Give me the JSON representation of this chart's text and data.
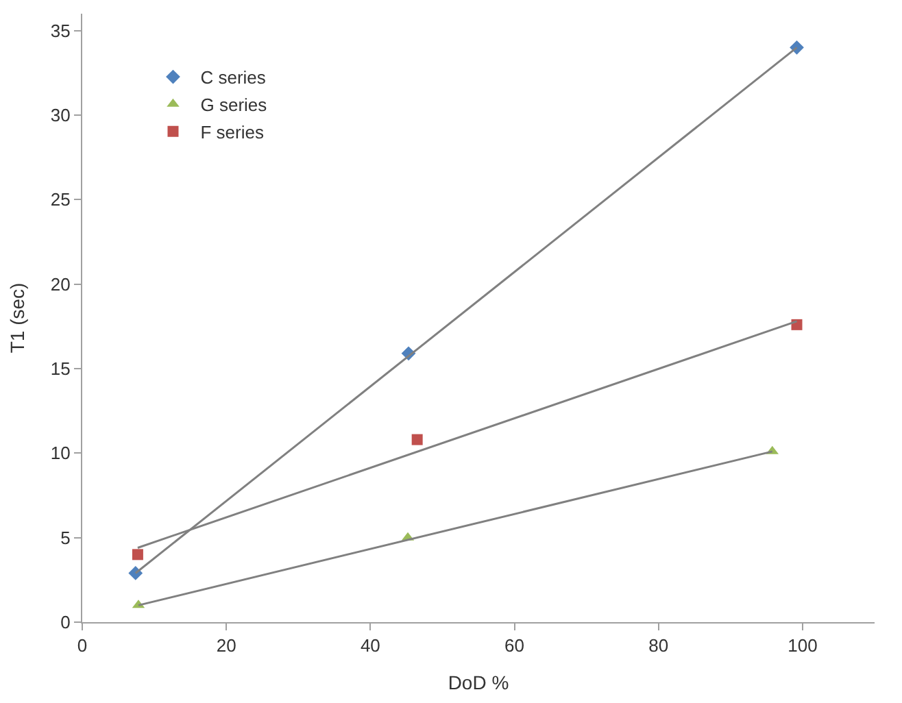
{
  "chart_data": {
    "type": "scatter",
    "xlabel": "DoD %",
    "ylabel": "T1 (sec)",
    "xlim": [
      0,
      110
    ],
    "xticks": [
      0,
      20,
      40,
      60,
      80,
      100
    ],
    "ylim": [
      0,
      36
    ],
    "yticks": [
      0,
      5,
      10,
      15,
      20,
      25,
      30,
      35
    ],
    "grid": false,
    "legend": "top left",
    "series": [
      {
        "name": "C series",
        "color": "#4f81bd",
        "marker": "diamond",
        "x": [
          7.4,
          45.3,
          99.2
        ],
        "values": [
          2.9,
          15.9,
          34.0
        ]
      },
      {
        "name": "G series",
        "color": "#9bbb59",
        "marker": "triangle",
        "x": [
          7.8,
          45.2,
          95.8
        ],
        "values": [
          1.0,
          5.0,
          10.1
        ]
      },
      {
        "name": "F series",
        "color": "#c0504d",
        "marker": "square",
        "x": [
          7.7,
          46.5,
          99.2
        ],
        "values": [
          4.0,
          10.8,
          17.6
        ]
      },
      {
        "type": "line",
        "color": "#808080",
        "marker": "none",
        "x": [
          7.4,
          99.2
        ],
        "values": [
          2.9,
          34.0
        ]
      },
      {
        "type": "line",
        "color": "#808080",
        "marker": "none",
        "x": [
          7.8,
          95.8
        ],
        "values": [
          1.0,
          10.1
        ]
      },
      {
        "type": "line",
        "color": "#808080",
        "marker": "none",
        "x": [
          7.7,
          99.2
        ],
        "values": [
          4.4,
          17.8
        ]
      }
    ]
  }
}
